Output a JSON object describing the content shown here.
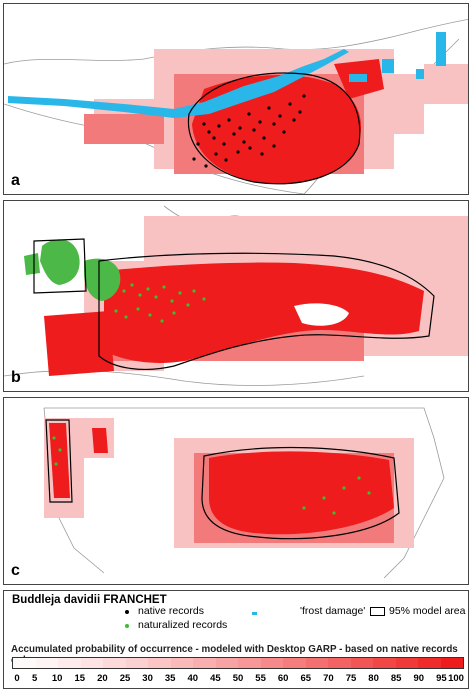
{
  "panels": [
    {
      "id": "a",
      "label": "a",
      "region": "east-asia"
    },
    {
      "id": "b",
      "label": "b",
      "region": "europe"
    },
    {
      "id": "c",
      "label": "c",
      "region": "north-america"
    }
  ],
  "legend": {
    "species": "Buddleja davidii FRANCHET",
    "native_label": "native records",
    "naturalized_label": "naturalized records",
    "frost_label": "'frost damage'",
    "model_area_label": "95% model area",
    "caption": "Accumulated probability of occurrence - modeled with Desktop GARP - based on native records only",
    "scale_ticks": [
      "0",
      "5",
      "10",
      "15",
      "20",
      "25",
      "30",
      "35",
      "40",
      "45",
      "50",
      "55",
      "60",
      "65",
      "70",
      "75",
      "80",
      "85",
      "90",
      "95",
      "100"
    ]
  },
  "colors": {
    "native": "#000000",
    "naturalized": "#3bbf2c",
    "frost": "#29b6e8",
    "high_probability": "#ee1c1c",
    "low_probability": "#ffffff",
    "naturalized_fill": "#4cb847"
  }
}
